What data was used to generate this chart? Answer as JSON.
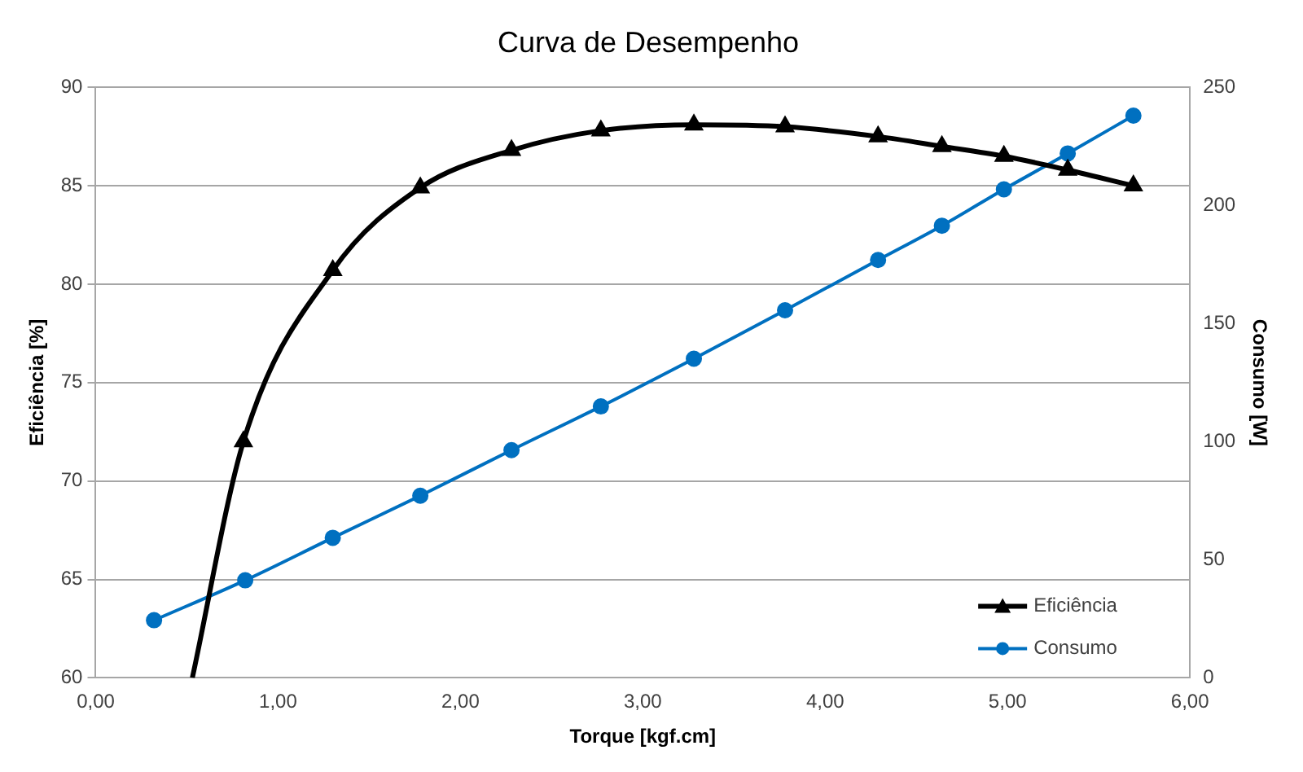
{
  "chart_data": {
    "type": "line",
    "title": "Curva de Desempenho",
    "xlabel": "Torque [kgf.cm]",
    "ylabel": "Eficiência [%]",
    "y2label": "Consumo [W]",
    "series": [
      {
        "name": "Eficiência",
        "color": "#000000",
        "marker": "triangle",
        "x": [
          0.53,
          0.81,
          1.3,
          1.78,
          2.28,
          2.77,
          3.28,
          3.78,
          4.29,
          4.64,
          4.98,
          5.33,
          5.69
        ],
        "values": [
          60,
          72.0,
          80.7,
          84.9,
          86.8,
          87.8,
          88.1,
          88.0,
          87.5,
          87.0,
          86.5,
          85.8,
          85.0
        ]
      },
      {
        "name": "Consumo",
        "color": "#0070c0",
        "marker": "circle",
        "axis": "y2",
        "x": [
          0.32,
          0.82,
          1.3,
          1.78,
          2.28,
          2.77,
          3.28,
          3.78,
          4.29,
          4.64,
          4.98,
          5.33,
          5.69
        ],
        "values": [
          24.4,
          41.3,
          59.3,
          77.1,
          96.4,
          114.9,
          135.1,
          155.6,
          176.9,
          191.4,
          206.8,
          222.0,
          238.0
        ]
      }
    ],
    "xlim": [
      0,
      6
    ],
    "xticks": [
      {
        "value": 0,
        "label": "0,00"
      },
      {
        "value": 1,
        "label": "1,00"
      },
      {
        "value": 2,
        "label": "2,00"
      },
      {
        "value": 3,
        "label": "3,00"
      },
      {
        "value": 4,
        "label": "4,00"
      },
      {
        "value": 5,
        "label": "5,00"
      },
      {
        "value": 6,
        "label": "6,00"
      }
    ],
    "ylim": [
      60,
      90
    ],
    "yticks": [
      60,
      65,
      70,
      75,
      80,
      85,
      90
    ],
    "y2lim": [
      0,
      250
    ],
    "y2ticks": [
      0,
      50,
      100,
      150,
      200,
      250
    ],
    "grid": "y",
    "legend": "bottom right"
  }
}
